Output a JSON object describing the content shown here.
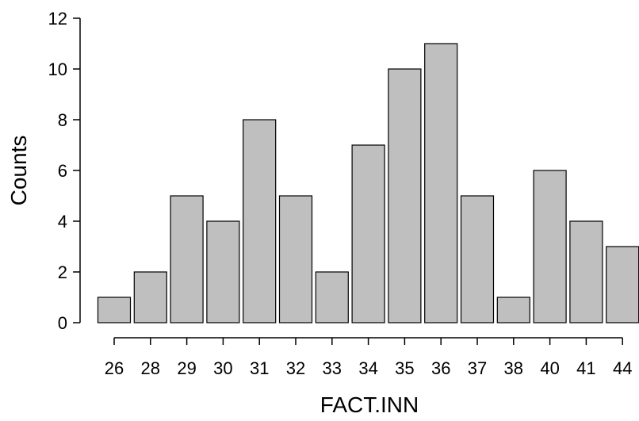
{
  "chart_data": {
    "type": "bar",
    "categories": [
      "26",
      "28",
      "29",
      "30",
      "31",
      "32",
      "33",
      "34",
      "35",
      "36",
      "37",
      "38",
      "40",
      "41",
      "44"
    ],
    "values": [
      1,
      2,
      5,
      4,
      8,
      5,
      2,
      7,
      10,
      11,
      5,
      1,
      6,
      4,
      3
    ],
    "xlabel": "FACT.INN",
    "ylabel": "Counts",
    "ylim": [
      0,
      12
    ],
    "yticks": [
      0,
      2,
      4,
      6,
      8,
      10,
      12
    ],
    "grid": false,
    "bar_color": "#bfbfbf"
  }
}
